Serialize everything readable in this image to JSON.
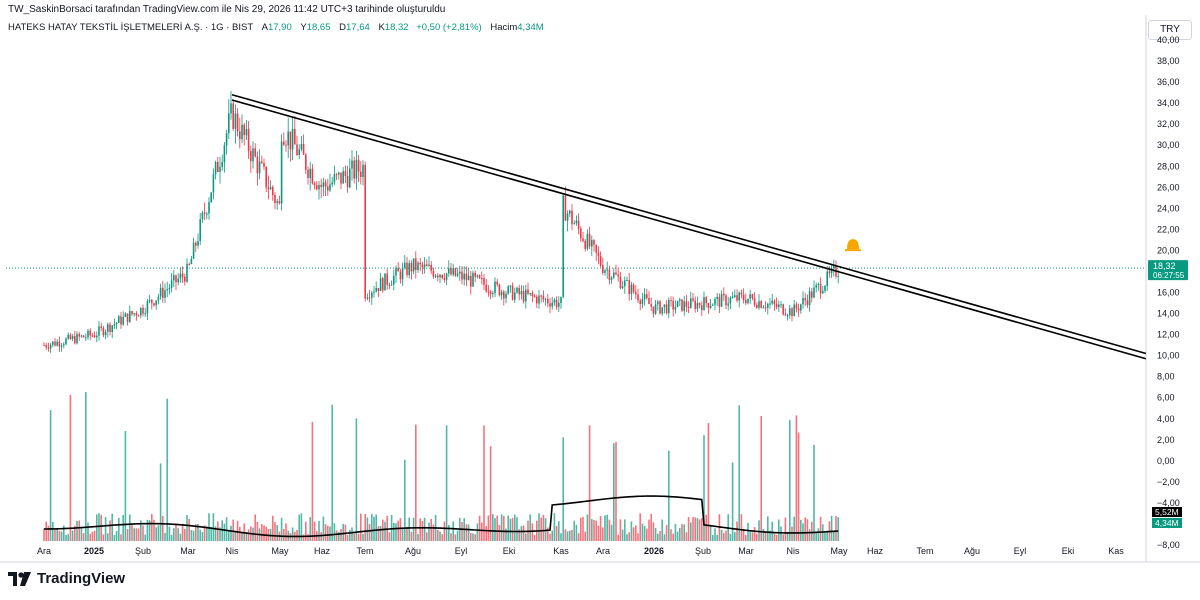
{
  "header": {
    "credit": "TW_SaskinBorsaci tarafından TradingView.com ile Nis 29, 2026 11:42 UTC+3 tarihinde oluşturuldu"
  },
  "legend": {
    "symbol": "HATEKS HATAY TEKSTİL İŞLETMELERİ A.Ş. · 1G · BIST",
    "open_label": "A",
    "open": "17,90",
    "high_label": "Y",
    "high": "18,65",
    "low_label": "D",
    "low": "17,64",
    "close_label": "K",
    "close": "18,32",
    "change": "+0,50 (+2,81%)",
    "volume_label": "Hacim",
    "volume": "4,34M"
  },
  "price_axis": {
    "currency": "TRY",
    "ticks": [
      "40,00",
      "38,00",
      "36,00",
      "34,00",
      "32,00",
      "30,00",
      "28,00",
      "26,00",
      "24,00",
      "22,00",
      "20,00",
      "18,00",
      "16,00",
      "14,00",
      "12,00",
      "10,00",
      "8,00",
      "6,00",
      "4,00",
      "2,00",
      "0,00",
      "−2,00",
      "−4,00",
      "−6,00",
      "−8,00"
    ]
  },
  "price_badge": {
    "price": "18,32",
    "countdown": "06:27:55",
    "color": "#089981"
  },
  "volume_badges": [
    {
      "text": "5,52M",
      "color": "#000000"
    },
    {
      "text": "4,34M",
      "color": "#089981"
    }
  ],
  "time_axis": {
    "labels": [
      "Ara",
      "2025",
      "Şub",
      "Mar",
      "Nis",
      "May",
      "Haz",
      "Tem",
      "Ağu",
      "Eyl",
      "Eki",
      "Kas",
      "Ara",
      "2026",
      "Şub",
      "Mar",
      "Nis",
      "May",
      "Haz",
      "Tem",
      "Ağu",
      "Eyl",
      "Eki",
      "Kas"
    ]
  },
  "footer": {
    "brand": "TradingView"
  },
  "colors": {
    "up": "#089981",
    "down": "#f23645",
    "trendline": "#000000",
    "alert": "#f7a600"
  },
  "chart_data": {
    "type": "candlestick",
    "title": "HATEKS HATAY TEKSTİL İŞLETMELERİ A.Ş. · 1G · BIST",
    "y_range": [
      -8,
      40
    ],
    "last_close": 18.32,
    "trendlines": [
      {
        "from": [
          "Nis 2025",
          34.8
        ],
        "to": [
          "Kas 2026",
          10.2
        ]
      },
      {
        "from": [
          "Nis 2025",
          34.3
        ],
        "to": [
          "Kas 2026",
          9.7
        ]
      }
    ],
    "close_path": [
      [
        "Ara 2024",
        11.0
      ],
      [
        "2025",
        12.0
      ],
      [
        "Şub 2025",
        14.5
      ],
      [
        "Mar 2025",
        18.0
      ],
      [
        "Nis 2025",
        33.0
      ],
      [
        "May 2025",
        24.0
      ],
      [
        "May 2025",
        32.0
      ],
      [
        "Haz 2025",
        26.0
      ],
      [
        "Tem 2025",
        28.0
      ],
      [
        "Tem 2025",
        16.0
      ],
      [
        "Ağu 2025",
        18.5
      ],
      [
        "Eyl 2025",
        17.5
      ],
      [
        "Eki 2025",
        16.0
      ],
      [
        "Kas 2025",
        15.0
      ],
      [
        "Kas 2025",
        24.5
      ],
      [
        "Ara 2025",
        18.5
      ],
      [
        "2026",
        14.5
      ],
      [
        "Şub 2026",
        15.0
      ],
      [
        "Mar 2026",
        15.5
      ],
      [
        "Nis 2026",
        14.2
      ],
      [
        "May 2026",
        18.3
      ]
    ],
    "volume_ma_label": "5,52M",
    "last_volume_label": "4,34M"
  }
}
